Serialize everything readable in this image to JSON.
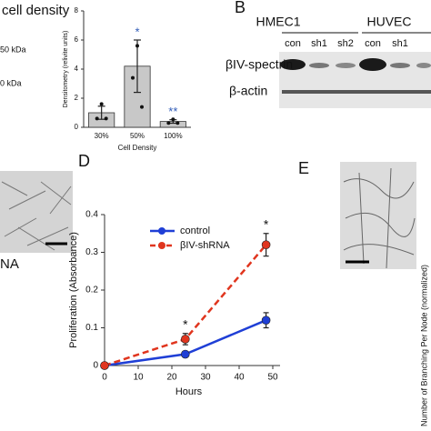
{
  "panel_a": {
    "title": "cell density",
    "markers": [
      "50 kDa",
      "0 kDa"
    ]
  },
  "chart_data": [
    {
      "type": "bar",
      "categories": [
        "30%",
        "50%",
        "100%"
      ],
      "values": [
        1.0,
        4.2,
        0.4
      ],
      "errors": [
        0.45,
        1.8,
        0.12
      ],
      "points": [
        [
          1.6,
          0.6,
          0.6
        ],
        [
          5.6,
          3.4,
          1.4
        ],
        [
          0.55,
          0.3,
          0.3
        ]
      ],
      "color": "#c8c8c8",
      "ylim": [
        0,
        8
      ],
      "yticks": [
        0,
        2,
        4,
        6,
        8
      ],
      "y_label": "Densitometry (relivite units)",
      "x_label": "Cell Density",
      "annotations": [
        "",
        "*",
        "**"
      ],
      "annotation_color": "#2f5bb7"
    },
    {
      "type": "line",
      "label": "D",
      "x": [
        0,
        24,
        48
      ],
      "series": [
        {
          "name": "control",
          "color": "#1f3fd6",
          "values": [
            0,
            0.03,
            0.12
          ],
          "errors": [
            0,
            0.005,
            0.02
          ]
        },
        {
          "name": "βIV-shRNA",
          "color": "#e0351e",
          "values": [
            0,
            0.07,
            0.32
          ],
          "errors": [
            0,
            0.015,
            0.03
          ]
        }
      ],
      "xlim": [
        0,
        50
      ],
      "ylim": [
        0,
        0.4
      ],
      "xticks": [
        0,
        10,
        20,
        30,
        40,
        50
      ],
      "yticks": [
        0,
        0.1,
        0.2,
        0.3,
        0.4
      ],
      "x_label": "Hours",
      "y_label": "Proliferation (Absorbance)",
      "annotations": [
        "",
        "*",
        "*"
      ]
    }
  ],
  "panel_b": {
    "label": "B",
    "groups": [
      "HMEC1",
      "HUVEC"
    ],
    "lanes": [
      "con",
      "sh1",
      "sh2",
      "con",
      "sh1"
    ],
    "rows": [
      "βIV-spectrin",
      "β-actin"
    ]
  },
  "panel_c": {
    "caption": "NA"
  },
  "panel_e": {
    "label": "E",
    "y_label": "Number of Branching Per Node (normalized)"
  }
}
